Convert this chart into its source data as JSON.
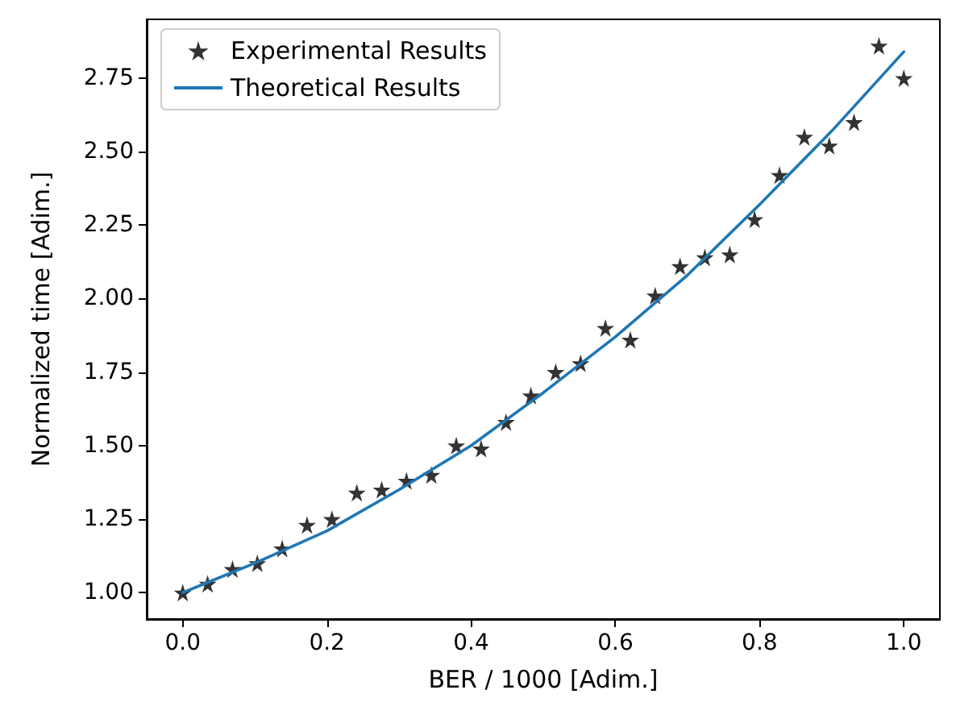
{
  "chart_data": {
    "type": "scatter",
    "xlabel": "BER / 1000 [Adim.]",
    "ylabel": "Normalized time [Adim.]",
    "xlim": [
      -0.05,
      1.05
    ],
    "ylim": [
      0.91,
      2.95
    ],
    "xticks": [
      {
        "value": 0,
        "label": "0.0"
      },
      {
        "value": 0.2,
        "label": "0.2"
      },
      {
        "value": 0.4,
        "label": "0.4"
      },
      {
        "value": 0.6,
        "label": "0.6"
      },
      {
        "value": 0.8,
        "label": "0.8"
      },
      {
        "value": 1,
        "label": "1.0"
      }
    ],
    "yticks": [
      {
        "value": 1,
        "label": "1.00"
      },
      {
        "value": 1.25,
        "label": "1.25"
      },
      {
        "value": 1.5,
        "label": "1.50"
      },
      {
        "value": 1.75,
        "label": "1.75"
      },
      {
        "value": 2,
        "label": "2.00"
      },
      {
        "value": 2.25,
        "label": "2.25"
      },
      {
        "value": 2.5,
        "label": "2.50"
      },
      {
        "value": 2.75,
        "label": "2.75"
      }
    ],
    "grid": false,
    "legend": "top left",
    "series": [
      {
        "name": "Experimental Results",
        "marker": "star",
        "color": "#000000",
        "x": [
          0,
          0.0345,
          0.069,
          0.1034,
          0.1379,
          0.1724,
          0.2069,
          0.2414,
          0.2759,
          0.3103,
          0.3448,
          0.3793,
          0.4138,
          0.4483,
          0.4828,
          0.5172,
          0.5517,
          0.5862,
          0.6207,
          0.6552,
          0.6897,
          0.7241,
          0.7586,
          0.7931,
          0.8276,
          0.8621,
          0.8966,
          0.931,
          0.9655,
          1
        ],
        "values": [
          1.0,
          1.03,
          1.08,
          1.1,
          1.15,
          1.23,
          1.25,
          1.34,
          1.35,
          1.38,
          1.4,
          1.5,
          1.49,
          1.58,
          1.67,
          1.75,
          1.78,
          1.9,
          1.86,
          2.01,
          2.11,
          2.14,
          2.15,
          2.27,
          2.42,
          2.55,
          2.52,
          2.6,
          2.86,
          2.75
        ]
      },
      {
        "name": "Theoretical Results",
        "type": "line",
        "marker": "none",
        "line_style": "solid",
        "color": "#1f77b4",
        "x": [
          0,
          0.1,
          0.2,
          0.3,
          0.4,
          0.5,
          0.6,
          0.7,
          0.8,
          0.9,
          1
        ],
        "values": [
          1.0,
          1.1,
          1.21,
          1.35,
          1.5,
          1.68,
          1.87,
          2.08,
          2.32,
          2.57,
          2.84
        ]
      }
    ]
  }
}
